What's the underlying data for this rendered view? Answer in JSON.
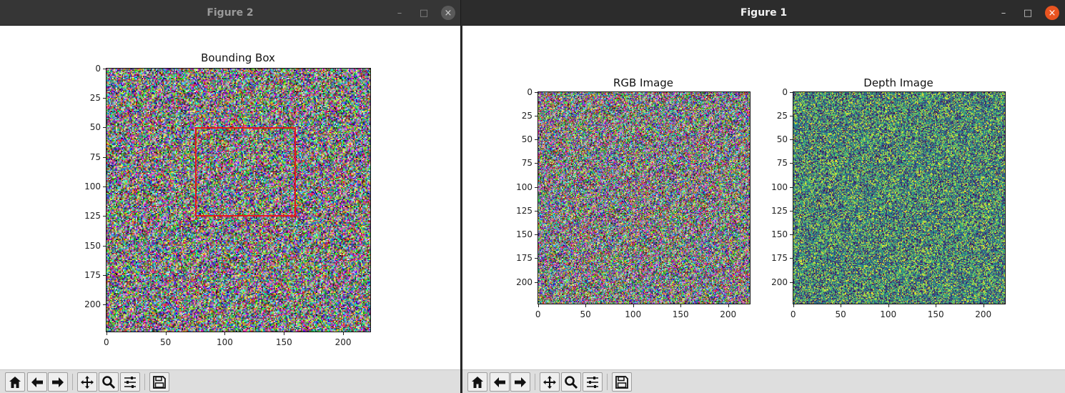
{
  "windows": [
    {
      "id": "fig2",
      "title": "Figure 2",
      "controls": {
        "minimize": "–",
        "maximize": "□",
        "close": "×"
      },
      "axes": [
        {
          "id": "bbox",
          "title": "Bounding Box",
          "image_kind": "rgb-noise",
          "x_ticks": [
            "0",
            "50",
            "100",
            "150",
            "200"
          ],
          "y_ticks": [
            "0",
            "25",
            "50",
            "75",
            "100",
            "125",
            "150",
            "175",
            "200"
          ],
          "bounding_box": {
            "x_min": 75,
            "y_min": 50,
            "x_max": 161,
            "y_max": 126,
            "color": "#e31a1c"
          }
        }
      ]
    },
    {
      "id": "fig1",
      "title": "Figure 1",
      "controls": {
        "minimize": "–",
        "maximize": "□",
        "close": "×"
      },
      "axes": [
        {
          "id": "rgb",
          "title": "RGB Image",
          "image_kind": "rgb-noise",
          "x_ticks": [
            "0",
            "50",
            "100",
            "150",
            "200"
          ],
          "y_ticks": [
            "0",
            "25",
            "50",
            "75",
            "100",
            "125",
            "150",
            "175",
            "200"
          ]
        },
        {
          "id": "depth",
          "title": "Depth Image",
          "image_kind": "viridis-noise",
          "x_ticks": [
            "0",
            "50",
            "100",
            "150",
            "200"
          ],
          "y_ticks": [
            "0",
            "25",
            "50",
            "75",
            "100",
            "125",
            "150",
            "175",
            "200"
          ]
        }
      ]
    }
  ],
  "image_extent": {
    "x": [
      0,
      224
    ],
    "y": [
      0,
      224
    ]
  },
  "toolbar": {
    "tools": [
      {
        "name": "home-button",
        "icon": "home-icon"
      },
      {
        "name": "back-button",
        "icon": "arrow-left-icon"
      },
      {
        "name": "forward-button",
        "icon": "arrow-right-icon"
      },
      {
        "name": "pan-button",
        "icon": "move-icon"
      },
      {
        "name": "zoom-button",
        "icon": "magnifier-icon"
      },
      {
        "name": "configure-subplots-button",
        "icon": "sliders-icon"
      },
      {
        "name": "save-button",
        "icon": "floppy-disk-icon"
      }
    ]
  },
  "colors": {
    "titlebar_dark": "#2c2c2c",
    "close_active": "#e95420",
    "bbox": "#e31a1c",
    "toolbar_bg": "#dedede"
  }
}
